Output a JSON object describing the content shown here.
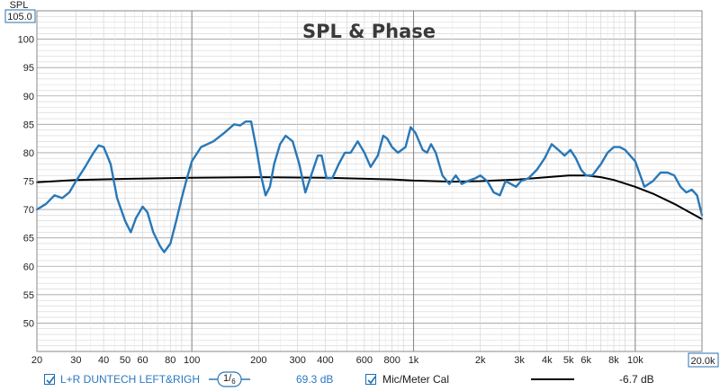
{
  "chart_data": {
    "type": "line",
    "title": "SPL & Phase",
    "ylabel": "SPL",
    "xscale": "log",
    "xlim": [
      20,
      20000
    ],
    "ylim": [
      45,
      105
    ],
    "y_top_label": "105.0",
    "x_end_label": "20.0k",
    "y_ticks": [
      {
        "v": 100,
        "label": "100"
      },
      {
        "v": 95,
        "label": "95"
      },
      {
        "v": 90,
        "label": "90"
      },
      {
        "v": 85,
        "label": "85"
      },
      {
        "v": 80,
        "label": "80"
      },
      {
        "v": 75,
        "label": "75"
      },
      {
        "v": 70,
        "label": "70"
      },
      {
        "v": 65,
        "label": "65"
      },
      {
        "v": 60,
        "label": "60"
      },
      {
        "v": 55,
        "label": "55"
      },
      {
        "v": 50,
        "label": "50"
      }
    ],
    "x_ticks": [
      {
        "v": 20,
        "label": "20"
      },
      {
        "v": 30,
        "label": "30"
      },
      {
        "v": 40,
        "label": "40"
      },
      {
        "v": 50,
        "label": "50"
      },
      {
        "v": 60,
        "label": "60"
      },
      {
        "v": 80,
        "label": "80"
      },
      {
        "v": 100,
        "label": "100"
      },
      {
        "v": 200,
        "label": "200"
      },
      {
        "v": 300,
        "label": "300"
      },
      {
        "v": 400,
        "label": "400"
      },
      {
        "v": 600,
        "label": "600"
      },
      {
        "v": 800,
        "label": "800"
      },
      {
        "v": 1000,
        "label": "1k"
      },
      {
        "v": 2000,
        "label": "2k"
      },
      {
        "v": 3000,
        "label": "3k"
      },
      {
        "v": 4000,
        "label": "4k"
      },
      {
        "v": 5000,
        "label": "5k"
      },
      {
        "v": 6000,
        "label": "6k"
      },
      {
        "v": 8000,
        "label": "8k"
      },
      {
        "v": 10000,
        "label": "10k"
      }
    ],
    "series": [
      {
        "name": "L+R DUNTECH LEFT&RIGH",
        "color": "#2878b8",
        "points": [
          [
            20,
            70.0
          ],
          [
            22,
            71.0
          ],
          [
            24,
            72.5
          ],
          [
            26,
            72.0
          ],
          [
            28,
            73.0
          ],
          [
            30,
            75.0
          ],
          [
            33,
            77.5
          ],
          [
            36,
            80.0
          ],
          [
            38,
            81.3
          ],
          [
            40,
            81.0
          ],
          [
            43,
            78.0
          ],
          [
            46,
            72.0
          ],
          [
            50,
            68.0
          ],
          [
            53,
            66.0
          ],
          [
            56,
            68.5
          ],
          [
            60,
            70.5
          ],
          [
            63,
            69.5
          ],
          [
            67,
            66.0
          ],
          [
            72,
            63.5
          ],
          [
            75,
            62.5
          ],
          [
            80,
            64.0
          ],
          [
            85,
            68.0
          ],
          [
            90,
            72.0
          ],
          [
            95,
            75.5
          ],
          [
            100,
            78.5
          ],
          [
            110,
            81.0
          ],
          [
            125,
            82.0
          ],
          [
            140,
            83.5
          ],
          [
            155,
            85.0
          ],
          [
            165,
            84.8
          ],
          [
            175,
            85.5
          ],
          [
            185,
            85.5
          ],
          [
            195,
            81.0
          ],
          [
            205,
            76.0
          ],
          [
            215,
            72.5
          ],
          [
            225,
            74.0
          ],
          [
            235,
            78.0
          ],
          [
            250,
            81.5
          ],
          [
            265,
            83.0
          ],
          [
            285,
            82.0
          ],
          [
            305,
            78.0
          ],
          [
            325,
            73.0
          ],
          [
            345,
            76.0
          ],
          [
            370,
            79.5
          ],
          [
            385,
            79.5
          ],
          [
            405,
            75.5
          ],
          [
            430,
            75.5
          ],
          [
            460,
            78.0
          ],
          [
            490,
            80.0
          ],
          [
            520,
            80.0
          ],
          [
            560,
            82.0
          ],
          [
            600,
            80.0
          ],
          [
            640,
            77.5
          ],
          [
            690,
            79.5
          ],
          [
            730,
            83.0
          ],
          [
            760,
            82.5
          ],
          [
            800,
            81.0
          ],
          [
            850,
            80.0
          ],
          [
            920,
            81.0
          ],
          [
            970,
            84.5
          ],
          [
            1020,
            83.5
          ],
          [
            1100,
            80.5
          ],
          [
            1150,
            80.0
          ],
          [
            1200,
            81.5
          ],
          [
            1260,
            80.0
          ],
          [
            1350,
            76.0
          ],
          [
            1450,
            74.5
          ],
          [
            1550,
            76.0
          ],
          [
            1650,
            74.5
          ],
          [
            1750,
            75.0
          ],
          [
            1900,
            75.5
          ],
          [
            2000,
            76.0
          ],
          [
            2150,
            75.0
          ],
          [
            2300,
            73.0
          ],
          [
            2450,
            72.5
          ],
          [
            2600,
            75.0
          ],
          [
            2750,
            74.5
          ],
          [
            2900,
            74.0
          ],
          [
            3050,
            75.0
          ],
          [
            3300,
            75.5
          ],
          [
            3600,
            77.0
          ],
          [
            3900,
            79.0
          ],
          [
            4200,
            81.5
          ],
          [
            4500,
            80.5
          ],
          [
            4800,
            79.5
          ],
          [
            5100,
            80.5
          ],
          [
            5400,
            79.0
          ],
          [
            5700,
            77.0
          ],
          [
            6000,
            76.0
          ],
          [
            6400,
            76.0
          ],
          [
            7000,
            78.0
          ],
          [
            7500,
            80.0
          ],
          [
            8000,
            81.0
          ],
          [
            8500,
            81.0
          ],
          [
            9000,
            80.5
          ],
          [
            10000,
            78.5
          ],
          [
            11000,
            74.0
          ],
          [
            12000,
            75.0
          ],
          [
            13000,
            76.5
          ],
          [
            14000,
            76.5
          ],
          [
            15000,
            76.0
          ],
          [
            16000,
            74.0
          ],
          [
            17000,
            73.0
          ],
          [
            18000,
            73.5
          ],
          [
            19000,
            72.5
          ],
          [
            20000,
            69.0
          ]
        ]
      },
      {
        "name": "Mic/Meter Cal",
        "color": "#000000",
        "points": [
          [
            20,
            74.8
          ],
          [
            30,
            75.2
          ],
          [
            50,
            75.4
          ],
          [
            100,
            75.6
          ],
          [
            200,
            75.7
          ],
          [
            400,
            75.6
          ],
          [
            800,
            75.3
          ],
          [
            1000,
            75.1
          ],
          [
            1500,
            74.9
          ],
          [
            2000,
            75.0
          ],
          [
            3000,
            75.3
          ],
          [
            4000,
            75.7
          ],
          [
            5000,
            76.0
          ],
          [
            6000,
            76.0
          ],
          [
            7000,
            75.7
          ],
          [
            8000,
            75.2
          ],
          [
            10000,
            74.0
          ],
          [
            12000,
            72.8
          ],
          [
            15000,
            71.0
          ],
          [
            20000,
            68.3
          ]
        ]
      }
    ]
  },
  "legend": {
    "series1_label": "L+R DUNTECH LEFT&RIGH",
    "smoothing_numerator": "1",
    "smoothing_denominator": "6",
    "series1_value": "69.3 dB",
    "series2_label": "Mic/Meter Cal",
    "series2_value": "-6.7 dB"
  },
  "colors": {
    "grid_major": "#a0a0a0",
    "grid_minor": "#d4d4d4",
    "series1": "#2878b8",
    "series2": "#000000",
    "value_text": "#2a78c2"
  }
}
